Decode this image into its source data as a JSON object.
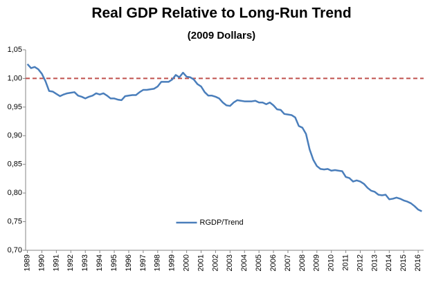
{
  "chart_data": {
    "type": "line",
    "title": "Real GDP Relative to Long-Run Trend",
    "subtitle": "(2009 Dollars)",
    "categories": [
      "1989",
      null,
      null,
      null,
      "1990",
      null,
      null,
      null,
      "1991",
      null,
      null,
      null,
      "1992",
      null,
      null,
      null,
      "1993",
      null,
      null,
      null,
      "1994",
      null,
      null,
      null,
      "1995",
      null,
      null,
      null,
      "1996",
      null,
      null,
      null,
      "1997",
      null,
      null,
      null,
      "1998",
      null,
      null,
      null,
      "1999",
      null,
      null,
      null,
      "2000",
      null,
      null,
      null,
      "2001",
      null,
      null,
      null,
      "2002",
      null,
      null,
      null,
      "2003",
      null,
      null,
      null,
      "2004",
      null,
      null,
      null,
      "2005",
      null,
      null,
      null,
      "2006",
      null,
      null,
      null,
      "2007",
      null,
      null,
      null,
      "2008",
      null,
      null,
      null,
      "2009",
      null,
      null,
      null,
      "2010",
      null,
      null,
      null,
      "2011",
      null,
      null,
      null,
      "2012",
      null,
      null,
      null,
      "2013",
      null,
      null,
      null,
      "2014",
      null,
      null,
      null,
      "2015",
      null,
      null,
      null,
      "2016",
      null
    ],
    "series": [
      {
        "name": "RGDP/Trend",
        "color": "#4a7ebb",
        "values": [
          1.025,
          1.018,
          1.02,
          1.016,
          1.008,
          0.995,
          0.978,
          0.977,
          0.973,
          0.969,
          0.972,
          0.974,
          0.975,
          0.976,
          0.97,
          0.968,
          0.965,
          0.968,
          0.97,
          0.974,
          0.972,
          0.974,
          0.97,
          0.965,
          0.965,
          0.963,
          0.962,
          0.969,
          0.97,
          0.971,
          0.971,
          0.976,
          0.98,
          0.98,
          0.981,
          0.982,
          0.986,
          0.994,
          0.994,
          0.994,
          0.998,
          1.006,
          1.002,
          1.01,
          1.003,
          1.002,
          0.998,
          0.99,
          0.986,
          0.976,
          0.97,
          0.97,
          0.968,
          0.965,
          0.958,
          0.953,
          0.952,
          0.958,
          0.962,
          0.961,
          0.96,
          0.96,
          0.96,
          0.961,
          0.958,
          0.958,
          0.955,
          0.958,
          0.953,
          0.946,
          0.945,
          0.938,
          0.937,
          0.936,
          0.932,
          0.917,
          0.914,
          0.903,
          0.876,
          0.858,
          0.847,
          0.842,
          0.841,
          0.842,
          0.839,
          0.84,
          0.839,
          0.838,
          0.828,
          0.826,
          0.82,
          0.822,
          0.82,
          0.816,
          0.809,
          0.804,
          0.802,
          0.797,
          0.796,
          0.797,
          0.789,
          0.79,
          0.792,
          0.79,
          0.787,
          0.785,
          0.782,
          0.777,
          0.771,
          0.768
        ]
      }
    ],
    "reference_line": {
      "value": 1,
      "color": "#c0504d",
      "dashed": true
    },
    "ylim": [
      0.7,
      1.05
    ],
    "yticks": [
      {
        "value": 0.7,
        "label": "0,70"
      },
      {
        "value": 0.75,
        "label": "0,75"
      },
      {
        "value": 0.8,
        "label": "0,80"
      },
      {
        "value": 0.85,
        "label": "0,85"
      },
      {
        "value": 0.9,
        "label": "0,90"
      },
      {
        "value": 0.95,
        "label": "0,95"
      },
      {
        "value": 1.0,
        "label": "1,00"
      },
      {
        "value": 1.05,
        "label": "1,05"
      }
    ],
    "grid": false,
    "legend": "bottom-center"
  }
}
